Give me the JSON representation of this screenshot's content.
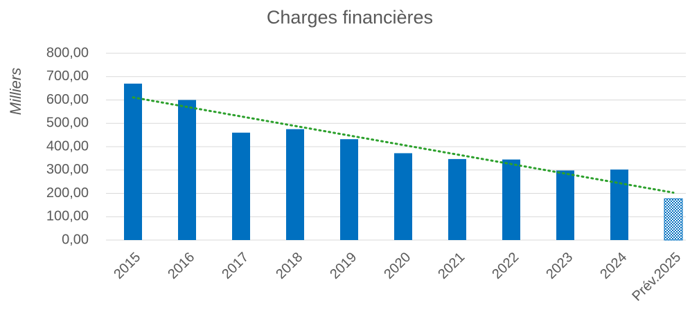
{
  "chart_data": {
    "type": "bar",
    "title": "Charges financières",
    "y_label": "Milliers",
    "categories": [
      "2015",
      "2016",
      "2017",
      "2018",
      "2019",
      "2020",
      "2021",
      "2022",
      "2023",
      "2024",
      "Prév.2025"
    ],
    "values": [
      670,
      600,
      460,
      475,
      432,
      372,
      347,
      345,
      298,
      302,
      177
    ],
    "color": "#0070c0",
    "bar_fills": [
      "solid",
      "solid",
      "solid",
      "solid",
      "solid",
      "solid",
      "solid",
      "solid",
      "solid",
      "solid",
      "checker"
    ],
    "ylim": [
      0,
      800
    ],
    "yticks": [
      {
        "value": 0,
        "label": "0,00"
      },
      {
        "value": 100,
        "label": "100,00"
      },
      {
        "value": 200,
        "label": "200,00"
      },
      {
        "value": 300,
        "label": "300,00"
      },
      {
        "value": 400,
        "label": "400,00"
      },
      {
        "value": 500,
        "label": "500,00"
      },
      {
        "value": 600,
        "label": "600,00"
      },
      {
        "value": 700,
        "label": "700,00"
      },
      {
        "value": 800,
        "label": "800,00"
      }
    ],
    "grid": true,
    "trendline": "linear",
    "trendline_color": "#2ca02c"
  }
}
